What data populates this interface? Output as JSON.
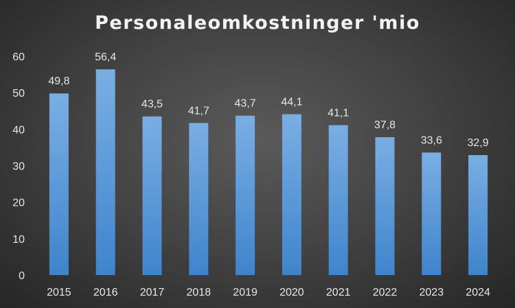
{
  "chart_data": {
    "type": "bar",
    "title": "Personaleomkostninger 'mio",
    "categories": [
      "2015",
      "2016",
      "2017",
      "2018",
      "2019",
      "2020",
      "2021",
      "2022",
      "2023",
      "2024"
    ],
    "values": [
      49.8,
      56.4,
      43.5,
      41.7,
      43.7,
      44.1,
      41.1,
      37.8,
      33.6,
      32.9
    ],
    "data_labels": [
      "49,8",
      "56,4",
      "43,5",
      "41,7",
      "43,7",
      "44,1",
      "41,1",
      "37,8",
      "33,6",
      "32,9"
    ],
    "yticks": [
      "0",
      "10",
      "20",
      "30",
      "40",
      "50",
      "60"
    ],
    "ylim": [
      0,
      60
    ],
    "xlabel": "",
    "ylabel": "",
    "grid": false,
    "legend": "none",
    "bar_color_top": "#7aaee3",
    "bar_color_bottom": "#3f84cc"
  }
}
